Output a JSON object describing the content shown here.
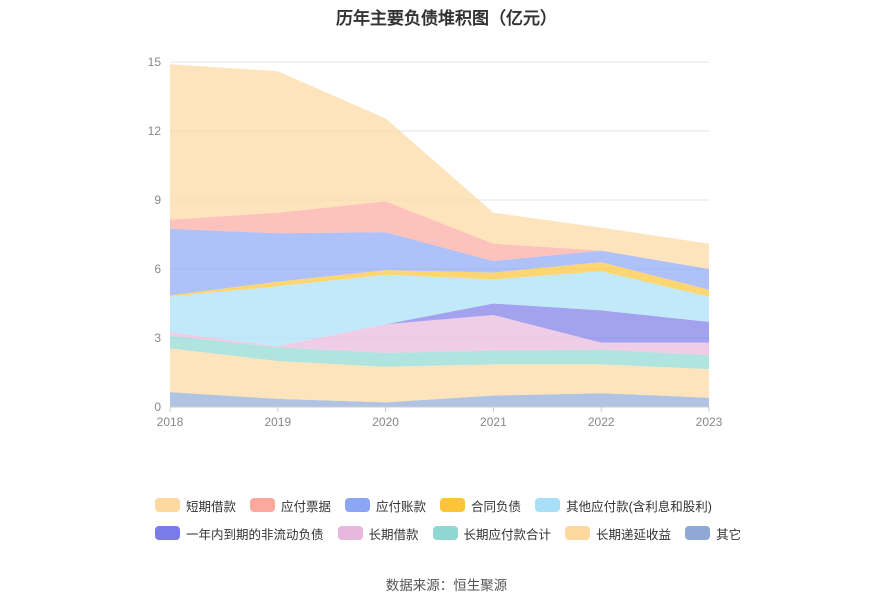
{
  "chart_data": {
    "type": "area",
    "stacked": true,
    "title": "历年主要负债堆积图（亿元）",
    "x": [
      "2018",
      "2019",
      "2020",
      "2021",
      "2022",
      "2023"
    ],
    "ylim": [
      0,
      15
    ],
    "yticks": [
      0,
      3,
      6,
      9,
      12,
      15
    ],
    "series": [
      {
        "name": "其它",
        "color": "#8fa9d6",
        "values": [
          0.65,
          0.35,
          0.2,
          0.5,
          0.6,
          0.4
        ]
      },
      {
        "name": "长期递延收益",
        "color": "#fdd9a0",
        "values": [
          1.9,
          1.65,
          1.55,
          1.35,
          1.25,
          1.25
        ]
      },
      {
        "name": "长期应付款合计",
        "color": "#8fd8d2",
        "values": [
          0.55,
          0.6,
          0.6,
          0.6,
          0.65,
          0.6
        ]
      },
      {
        "name": "长期借款",
        "color": "#e8b8dc",
        "values": [
          0.15,
          0.05,
          1.25,
          1.55,
          0.3,
          0.55
        ]
      },
      {
        "name": "一年内到期的非流动负债",
        "color": "#7a7ae8",
        "values": [
          0.0,
          0.0,
          0.0,
          0.5,
          1.4,
          0.9
        ]
      },
      {
        "name": "其他应付款(含利息和股利)",
        "color": "#a7dff7",
        "values": [
          1.55,
          2.6,
          2.15,
          1.05,
          1.7,
          1.1
        ]
      },
      {
        "name": "合同负债",
        "color": "#fcc438",
        "values": [
          0.05,
          0.2,
          0.2,
          0.3,
          0.4,
          0.3
        ]
      },
      {
        "name": "应付账款",
        "color": "#8ba6f5",
        "values": [
          2.9,
          2.1,
          1.65,
          0.5,
          0.5,
          0.9
        ]
      },
      {
        "name": "应付票据",
        "color": "#fca89e",
        "values": [
          0.4,
          0.9,
          1.35,
          0.75,
          0.0,
          0.0
        ]
      },
      {
        "name": "短期借款",
        "color": "#fdd9a0",
        "values": [
          6.75,
          6.15,
          3.6,
          1.35,
          1.0,
          1.1
        ]
      }
    ],
    "legend_order": [
      "短期借款",
      "应付票据",
      "应付账款",
      "合同负债",
      "其他应付款(含利息和股利)",
      "一年内到期的非流动负债",
      "长期借款",
      "长期应付款合计",
      "长期递延收益",
      "其它"
    ],
    "source": "数据来源：恒生聚源"
  }
}
